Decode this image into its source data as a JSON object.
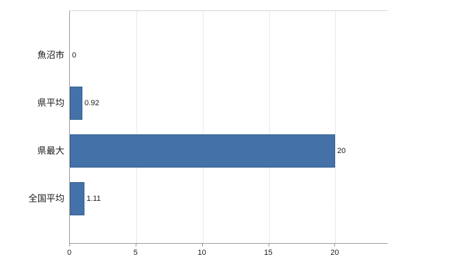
{
  "chart_data": {
    "type": "bar",
    "orientation": "horizontal",
    "title": "",
    "xlabel": "",
    "ylabel": "",
    "categories": [
      "魚沼市",
      "県平均",
      "県最大",
      "全国平均"
    ],
    "values": [
      0,
      0.92,
      20,
      1.11
    ],
    "value_labels": [
      "0",
      "0.92",
      "20",
      "1.11"
    ],
    "xlim": [
      0,
      24
    ],
    "xticks": [
      0,
      5,
      10,
      15,
      20
    ],
    "grid": "vertical-dotted",
    "legend": "none",
    "colors": {
      "bar_fill": "#4472a8",
      "bar_border": "#35618f",
      "axis": "#9a9a9a",
      "grid": "#d4d4d4",
      "text": "#1a1a1a",
      "background": "#ffffff"
    }
  }
}
